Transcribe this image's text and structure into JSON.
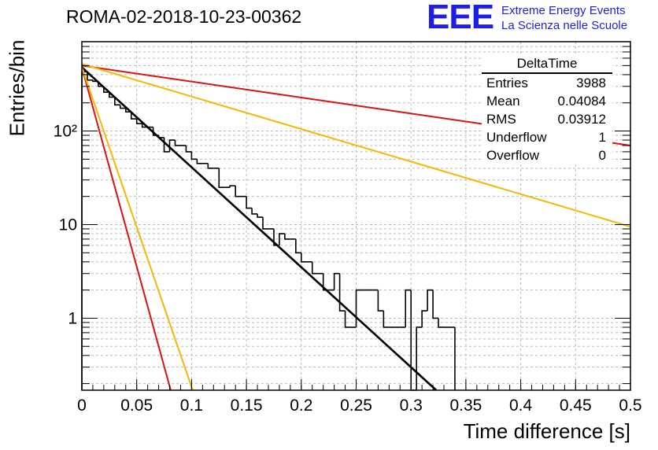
{
  "header": {
    "title": "ROMA-02-2018-10-23-00362",
    "logo_text": "EEE",
    "tagline1": "Extreme Energy Events",
    "tagline2": "La Scienza nelle Scuole"
  },
  "stats": {
    "title": "DeltaTime",
    "rows": [
      {
        "label": "Entries",
        "value": "3988"
      },
      {
        "label": "Mean",
        "value": "0.04084"
      },
      {
        "label": "RMS",
        "value": "0.03912"
      },
      {
        "label": "Underflow",
        "value": "1"
      },
      {
        "label": "Overflow",
        "value": "0"
      }
    ]
  },
  "chart_data": {
    "type": "histogram",
    "xlabel": "Time difference [s]",
    "ylabel": "Entries/bin",
    "xlim": [
      0,
      0.5
    ],
    "ylim": [
      0.17,
      900
    ],
    "log_y": true,
    "grid": true,
    "x_ticks": [
      "0",
      "0.05",
      "0.1",
      "0.15",
      "0.2",
      "0.25",
      "0.3",
      "0.35",
      "0.4",
      "0.45",
      "0.5"
    ],
    "y_ticks": [
      {
        "value": 1,
        "label": "1"
      },
      {
        "value": 10,
        "label": "10"
      },
      {
        "value": 100,
        "label": "10²"
      }
    ],
    "bin_width": 0.005,
    "bin_values": [
      430,
      350,
      340,
      300,
      260,
      230,
      190,
      175,
      160,
      135,
      120,
      110,
      110,
      90,
      85,
      60,
      80,
      70,
      70,
      60,
      50,
      45,
      45,
      40,
      40,
      25,
      25,
      26,
      20,
      20,
      15,
      13,
      12,
      9,
      9,
      6,
      8,
      7,
      7,
      5,
      4,
      4,
      3,
      3,
      2,
      2,
      3,
      1.2,
      0.8,
      0.8,
      2,
      2,
      2,
      2,
      1.2,
      0.8,
      0.8,
      0.8,
      0.8,
      2,
      0,
      0.8,
      1.2,
      2,
      1,
      0.8,
      0.8,
      0.8
    ],
    "bar_color": "#000000",
    "lines": [
      {
        "color": "#000000",
        "points": [
          [
            0,
            480
          ],
          [
            0.323,
            0.17
          ]
        ]
      },
      {
        "color": "#dd1111",
        "points": [
          [
            0,
            500
          ],
          [
            0.5,
            70
          ]
        ]
      },
      {
        "color": "#f5b800",
        "points": [
          [
            0,
            520
          ],
          [
            0.5,
            9.5
          ]
        ]
      },
      {
        "color": "#dd1111",
        "points": [
          [
            0,
            480
          ],
          [
            0.081,
            0.17
          ]
        ]
      },
      {
        "color": "#f5b800",
        "points": [
          [
            0,
            480
          ],
          [
            0.101,
            0.17
          ]
        ]
      }
    ]
  }
}
